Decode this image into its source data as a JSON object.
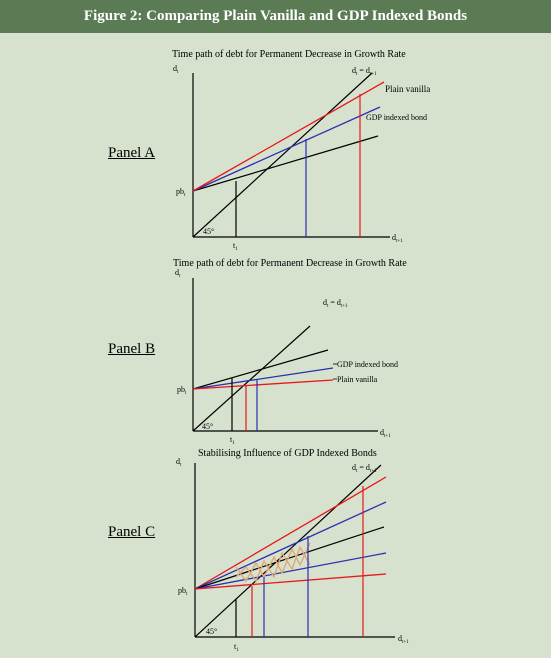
{
  "figure_title": "Figure 2: Comparing Plain Vanilla and GDP Indexed Bonds",
  "colors": {
    "header_bg": "#5b7b55",
    "page_bg": "#d6e2cd",
    "plain_vanilla": "#e8161a",
    "gdp_indexed": "#2b2fb0",
    "forty_five": "#000000",
    "cobweb": "#e0a878"
  },
  "panels": [
    {
      "label": "Panel A",
      "title": "Time path of debt for Permanent Decrease in Growth Rate",
      "y_axis": "d",
      "y_sub": "t",
      "x_axis": "d",
      "x_sub": "t+1",
      "curve_label_45": "d",
      "curve_label_45_sub": "t",
      "curve_label_45_eq": " = d",
      "curve_label_45_eq_sub": "t+1",
      "label_plain": "Plain vanilla",
      "label_gdp": "GDP indexed bond",
      "intercept": "pb",
      "intercept_sub": "t",
      "angle": "45°",
      "tick": "t",
      "tick_sub": "1"
    },
    {
      "label": "Panel B",
      "title": "Time path of debt for Permanent Decrease in Growth Rate",
      "y_axis": "d",
      "y_sub": "t",
      "x_axis": "d",
      "x_sub": "t+1",
      "curve_label_45": "d",
      "curve_label_45_sub": "t",
      "curve_label_45_eq": " = d",
      "curve_label_45_eq_sub": "t+1",
      "label_plain": "Plain vanilla",
      "label_gdp": "GDP indexed bond",
      "intercept": "pb",
      "intercept_sub": "t",
      "angle": "45°",
      "tick": "t",
      "tick_sub": "1"
    },
    {
      "label": "Panel C",
      "title": "Stabilising Influence of GDP Indexed Bonds",
      "y_axis": "d",
      "y_sub": "t",
      "x_axis": "d",
      "x_sub": "t+1",
      "curve_label_45": "d",
      "curve_label_45_sub": "t",
      "curve_label_45_eq": " = d",
      "curve_label_45_eq_sub": "t+1",
      "intercept": "pb",
      "intercept_sub": "t",
      "angle": "45°",
      "tick": "t",
      "tick_sub": "1"
    }
  ]
}
